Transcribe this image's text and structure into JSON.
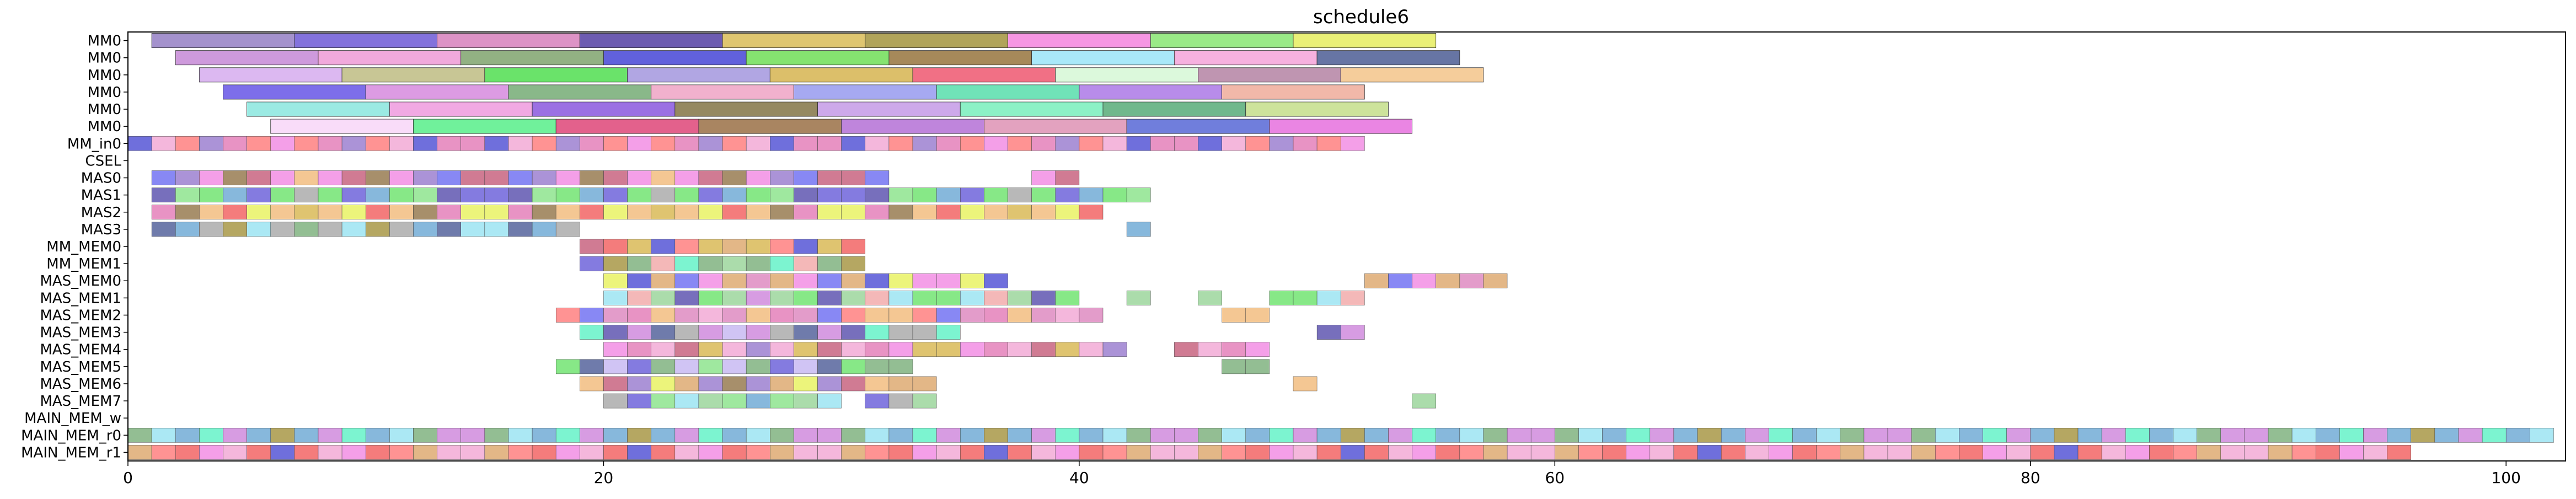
{
  "chart_data": {
    "type": "gantt",
    "title": "schedule6",
    "xlabel": "",
    "ylabel": "",
    "xlim": [
      0,
      102.5
    ],
    "x_ticks": [
      0,
      20,
      40,
      60,
      80,
      100
    ],
    "grid": false,
    "rows": [
      "MM0",
      "MM0",
      "MM0",
      "MM0",
      "MM0",
      "MM0",
      "MM_in0",
      "CSEL",
      "MAS0",
      "MAS1",
      "MAS2",
      "MAS3",
      "MM_MEM0",
      "MM_MEM1",
      "MAS_MEM0",
      "MAS_MEM1",
      "MAS_MEM2",
      "MAS_MEM3",
      "MAS_MEM4",
      "MAS_MEM5",
      "MAS_MEM6",
      "MAS_MEM7",
      "MAIN_MEM_w",
      "MAIN_MEM_r0",
      "MAIN_MEM_r1"
    ],
    "palette": [
      "#8f6fc9",
      "#5b4fd6",
      "#d97bb8",
      "#4a3fa6",
      "#d4b040",
      "#9c8a2e",
      "#f07fe0",
      "#7fe07f",
      "#e6f04f",
      "#c97bd8",
      "#e06fb0",
      "#6fa86f",
      "#3f3fd0",
      "#5fe05f",
      "#8a6a3a",
      "#8fe0f0",
      "#f09fd0",
      "#3f4f8f",
      "#d99f5f",
      "#f0a0a0",
      "#f0b46f",
      "#5fa0d0",
      "#ff6f6f",
      "#c0b0f0",
      "#c04f6f",
      "#8fd08f",
      "#6060f0",
      "#a0a0a0",
      "#f05050",
      "#50f0c0"
    ],
    "bars": [
      {
        "row": 0,
        "start": 1.0,
        "end": 7.0,
        "color": "#9a86c8"
      },
      {
        "row": 0,
        "start": 7.0,
        "end": 13.0,
        "color": "#7563d8"
      },
      {
        "row": 0,
        "start": 13.0,
        "end": 19.0,
        "color": "#d987c0"
      },
      {
        "row": 0,
        "start": 19.0,
        "end": 25.0,
        "color": "#5d4aa8"
      },
      {
        "row": 0,
        "start": 25.0,
        "end": 31.0,
        "color": "#dcc060"
      },
      {
        "row": 0,
        "start": 31.0,
        "end": 37.0,
        "color": "#a89a48"
      },
      {
        "row": 0,
        "start": 37.0,
        "end": 43.0,
        "color": "#f58be0"
      },
      {
        "row": 0,
        "start": 43.0,
        "end": 49.0,
        "color": "#8fe87a"
      },
      {
        "row": 0,
        "start": 49.0,
        "end": 55.0,
        "color": "#e8ee68"
      },
      {
        "row": 1,
        "start": 2.0,
        "end": 8.0,
        "color": "#c98fd8"
      },
      {
        "row": 1,
        "start": 8.0,
        "end": 14.0,
        "color": "#f0a0d8"
      },
      {
        "row": 1,
        "start": 14.0,
        "end": 20.0,
        "color": "#86a876"
      },
      {
        "row": 1,
        "start": 20.0,
        "end": 26.0,
        "color": "#5050d8"
      },
      {
        "row": 1,
        "start": 26.0,
        "end": 32.0,
        "color": "#78e060"
      },
      {
        "row": 1,
        "start": 32.0,
        "end": 38.0,
        "color": "#9c7c48"
      },
      {
        "row": 1,
        "start": 38.0,
        "end": 44.0,
        "color": "#a0e6f8"
      },
      {
        "row": 1,
        "start": 44.0,
        "end": 50.0,
        "color": "#f5a8dc"
      },
      {
        "row": 1,
        "start": 50.0,
        "end": 56.0,
        "color": "#56669a"
      },
      {
        "row": 2,
        "start": 3.0,
        "end": 9.0,
        "color": "#d8b0f0"
      },
      {
        "row": 2,
        "start": 9.0,
        "end": 15.0,
        "color": "#c2c08a"
      },
      {
        "row": 2,
        "start": 15.0,
        "end": 21.0,
        "color": "#5ae05a"
      },
      {
        "row": 2,
        "start": 21.0,
        "end": 27.0,
        "color": "#a89ce0"
      },
      {
        "row": 2,
        "start": 27.0,
        "end": 33.0,
        "color": "#d8b85a"
      },
      {
        "row": 2,
        "start": 33.0,
        "end": 39.0,
        "color": "#f06078"
      },
      {
        "row": 2,
        "start": 39.0,
        "end": 45.0,
        "color": "#d8f8d8"
      },
      {
        "row": 2,
        "start": 45.0,
        "end": 51.0,
        "color": "#b88aa8"
      },
      {
        "row": 2,
        "start": 51.0,
        "end": 57.0,
        "color": "#f4c890"
      },
      {
        "row": 3,
        "start": 4.0,
        "end": 10.0,
        "color": "#6f5ee8"
      },
      {
        "row": 3,
        "start": 10.0,
        "end": 16.0,
        "color": "#d890e0"
      },
      {
        "row": 3,
        "start": 16.0,
        "end": 22.0,
        "color": "#7cb07c"
      },
      {
        "row": 3,
        "start": 22.0,
        "end": 28.0,
        "color": "#f0a8c8"
      },
      {
        "row": 3,
        "start": 28.0,
        "end": 34.0,
        "color": "#9ca0f0"
      },
      {
        "row": 3,
        "start": 34.0,
        "end": 40.0,
        "color": "#60e0b0"
      },
      {
        "row": 3,
        "start": 40.0,
        "end": 46.0,
        "color": "#b080e8"
      },
      {
        "row": 3,
        "start": 46.0,
        "end": 52.0,
        "color": "#f0b0a0"
      },
      {
        "row": 4,
        "start": 5.0,
        "end": 11.0,
        "color": "#90e8e0"
      },
      {
        "row": 4,
        "start": 11.0,
        "end": 17.0,
        "color": "#f0a0e0"
      },
      {
        "row": 4,
        "start": 17.0,
        "end": 23.0,
        "color": "#9060e0"
      },
      {
        "row": 4,
        "start": 23.0,
        "end": 29.0,
        "color": "#8a7c50"
      },
      {
        "row": 4,
        "start": 29.0,
        "end": 35.0,
        "color": "#c8a0e8"
      },
      {
        "row": 4,
        "start": 35.0,
        "end": 41.0,
        "color": "#80f0c0"
      },
      {
        "row": 4,
        "start": 41.0,
        "end": 47.0,
        "color": "#60b080"
      },
      {
        "row": 4,
        "start": 47.0,
        "end": 53.0,
        "color": "#c8e090"
      },
      {
        "row": 5,
        "start": 6.0,
        "end": 12.0,
        "color": "#f8d8f8"
      },
      {
        "row": 5,
        "start": 12.0,
        "end": 18.0,
        "color": "#60f090"
      },
      {
        "row": 5,
        "start": 18.0,
        "end": 24.0,
        "color": "#e05080"
      },
      {
        "row": 5,
        "start": 24.0,
        "end": 30.0,
        "color": "#a07850"
      },
      {
        "row": 5,
        "start": 30.0,
        "end": 36.0,
        "color": "#b878d8"
      },
      {
        "row": 5,
        "start": 36.0,
        "end": 42.0,
        "color": "#e098b8"
      },
      {
        "row": 5,
        "start": 42.0,
        "end": 48.0,
        "color": "#6070d8"
      },
      {
        "row": 5,
        "start": 48.0,
        "end": 54.0,
        "color": "#e878e0"
      }
    ],
    "cell_rows": [
      {
        "row": 6,
        "start": 0.0,
        "cells": 52,
        "gaps": []
      },
      {
        "row": 8,
        "start": 1.0,
        "cells": 39,
        "gaps": [
          31,
          32,
          33,
          34,
          35,
          36
        ]
      },
      {
        "row": 9,
        "start": 1.0,
        "cells": 42,
        "gaps": []
      },
      {
        "row": 10,
        "start": 1.0,
        "cells": 40,
        "gaps": []
      },
      {
        "row": 11,
        "start": 1.0,
        "cells": 42,
        "gaps": [
          18,
          19,
          20,
          21,
          22,
          23,
          24,
          25,
          26,
          27,
          28,
          29,
          30,
          31,
          32,
          33,
          34,
          35,
          36,
          37,
          38,
          39,
          40
        ]
      },
      {
        "row": 12,
        "start": 19.0,
        "cells": 12,
        "gaps": []
      },
      {
        "row": 13,
        "start": 19.0,
        "cells": 12,
        "gaps": []
      },
      {
        "row": 14,
        "start": 20.0,
        "cells": 38,
        "gaps": [
          17,
          18,
          19,
          20,
          21,
          22,
          23,
          24,
          25,
          26,
          27,
          28,
          29,
          30,
          31
        ]
      },
      {
        "row": 15,
        "start": 20.0,
        "cells": 32,
        "gaps": [
          20,
          21,
          23,
          24,
          26,
          27
        ]
      },
      {
        "row": 16,
        "start": 18.0,
        "cells": 30,
        "gaps": [
          23,
          24,
          25,
          26,
          27
        ]
      },
      {
        "row": 17,
        "start": 19.0,
        "cells": 33,
        "gaps": [
          16,
          17,
          18,
          19,
          20,
          21,
          22,
          23,
          24,
          25,
          26,
          27,
          28,
          29,
          30
        ]
      },
      {
        "row": 18,
        "start": 20.0,
        "cells": 28,
        "gaps": [
          22,
          23
        ]
      },
      {
        "row": 19,
        "start": 18.0,
        "cells": 30,
        "gaps": [
          15,
          16,
          17,
          18,
          19,
          20,
          21,
          22,
          23,
          24,
          25,
          26,
          27
        ]
      },
      {
        "row": 20,
        "start": 19.0,
        "cells": 31,
        "gaps": [
          15,
          16,
          17,
          18,
          19,
          20,
          21,
          22,
          23,
          24,
          25,
          26,
          27,
          28,
          29
        ]
      },
      {
        "row": 21,
        "start": 20.0,
        "cells": 35,
        "gaps": [
          10,
          14,
          15,
          16,
          17,
          18,
          19,
          20,
          21,
          22,
          23,
          24,
          25,
          26,
          27,
          28,
          29,
          30,
          31,
          32,
          33
        ]
      },
      {
        "row": 23,
        "start": 0.0,
        "cells": 102,
        "gaps": []
      },
      {
        "row": 24,
        "start": 0.0,
        "cells": 96,
        "gaps": []
      }
    ]
  }
}
